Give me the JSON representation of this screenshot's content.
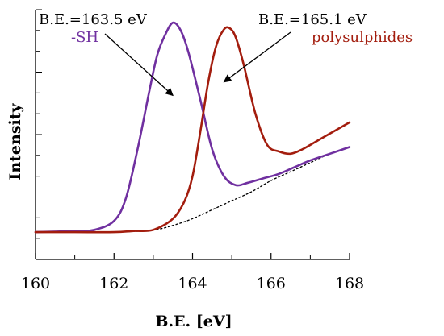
{
  "chart_data": {
    "type": "line",
    "xlabel": "B.E. [eV]",
    "ylabel": "Intensity",
    "xlim": [
      160,
      168
    ],
    "ylim": [
      0,
      1
    ],
    "x_ticks": [
      "160",
      "162",
      "164",
      "166",
      "168"
    ],
    "grid": false,
    "colors": {
      "sh": "#7030a0",
      "polysulphides": "#a31d0e",
      "baseline": "#000000"
    },
    "series": [
      {
        "name": "-SH",
        "x": [
          160.0,
          161.0,
          161.5,
          162.0,
          162.3,
          162.6,
          162.9,
          163.1,
          163.3,
          163.5,
          163.7,
          163.9,
          164.2,
          164.5,
          164.8,
          165.1,
          165.4,
          165.8,
          166.2,
          166.6,
          167.0,
          167.5,
          168.0
        ],
        "y": [
          0.05,
          0.055,
          0.06,
          0.1,
          0.2,
          0.42,
          0.68,
          0.84,
          0.93,
          0.985,
          0.95,
          0.85,
          0.64,
          0.42,
          0.3,
          0.26,
          0.27,
          0.29,
          0.31,
          0.34,
          0.37,
          0.4,
          0.43
        ]
      },
      {
        "name": "polysulphides",
        "x": [
          160.0,
          161.0,
          162.0,
          162.5,
          163.0,
          163.5,
          163.8,
          164.0,
          164.2,
          164.4,
          164.6,
          164.8,
          164.95,
          165.1,
          165.3,
          165.6,
          165.9,
          166.2,
          166.5,
          166.8,
          167.2,
          167.6,
          168.0
        ],
        "y": [
          0.05,
          0.05,
          0.05,
          0.055,
          0.06,
          0.11,
          0.19,
          0.3,
          0.5,
          0.72,
          0.88,
          0.955,
          0.96,
          0.92,
          0.8,
          0.58,
          0.44,
          0.41,
          0.4,
          0.42,
          0.46,
          0.5,
          0.54
        ]
      },
      {
        "name": "",
        "style": "dotted",
        "x": [
          160.0,
          162.0,
          163.0,
          163.5,
          164.0,
          164.5,
          165.0,
          165.5,
          166.0,
          166.5,
          167.0,
          167.5,
          168.0
        ],
        "y": [
          0.05,
          0.05,
          0.06,
          0.08,
          0.11,
          0.15,
          0.19,
          0.23,
          0.28,
          0.32,
          0.36,
          0.4,
          0.43
        ]
      }
    ],
    "annotations": [
      {
        "text": "B.E.=163.5 eV",
        "points_to": [
          163.5,
          0.66
        ]
      },
      {
        "text": "-SH",
        "color_key": "sh"
      },
      {
        "text": "B.E.=165.1 eV",
        "points_to": [
          164.8,
          0.72
        ]
      },
      {
        "text": "polysulphides",
        "color_key": "polysulphides"
      }
    ]
  }
}
